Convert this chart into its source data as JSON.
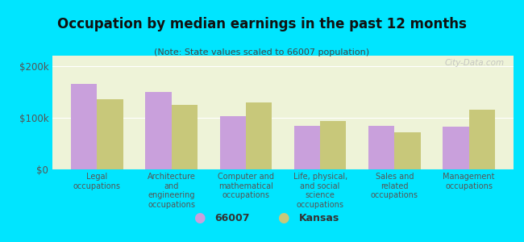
{
  "title": "Occupation by median earnings in the past 12 months",
  "subtitle": "(Note: State values scaled to 66007 population)",
  "categories": [
    "Legal\noccupations",
    "Architecture\nand\nengineering\noccupations",
    "Computer and\nmathematical\noccupations",
    "Life, physical,\nand social\nscience\noccupations",
    "Sales and\nrelated\noccupations",
    "Management\noccupations"
  ],
  "values_66007": [
    165000,
    150000,
    103000,
    85000,
    85000,
    83000
  ],
  "values_kansas": [
    135000,
    125000,
    130000,
    93000,
    72000,
    115000
  ],
  "color_66007": "#c9a0dc",
  "color_kansas": "#c8c87a",
  "background_outer": "#00e5ff",
  "background_inner": "#eef3d8",
  "ylim": [
    0,
    220000
  ],
  "ytick_labels": [
    "$0",
    "$100k",
    "$200k"
  ],
  "legend_label_66007": "66007",
  "legend_label_kansas": "Kansas",
  "watermark": "City-Data.com"
}
